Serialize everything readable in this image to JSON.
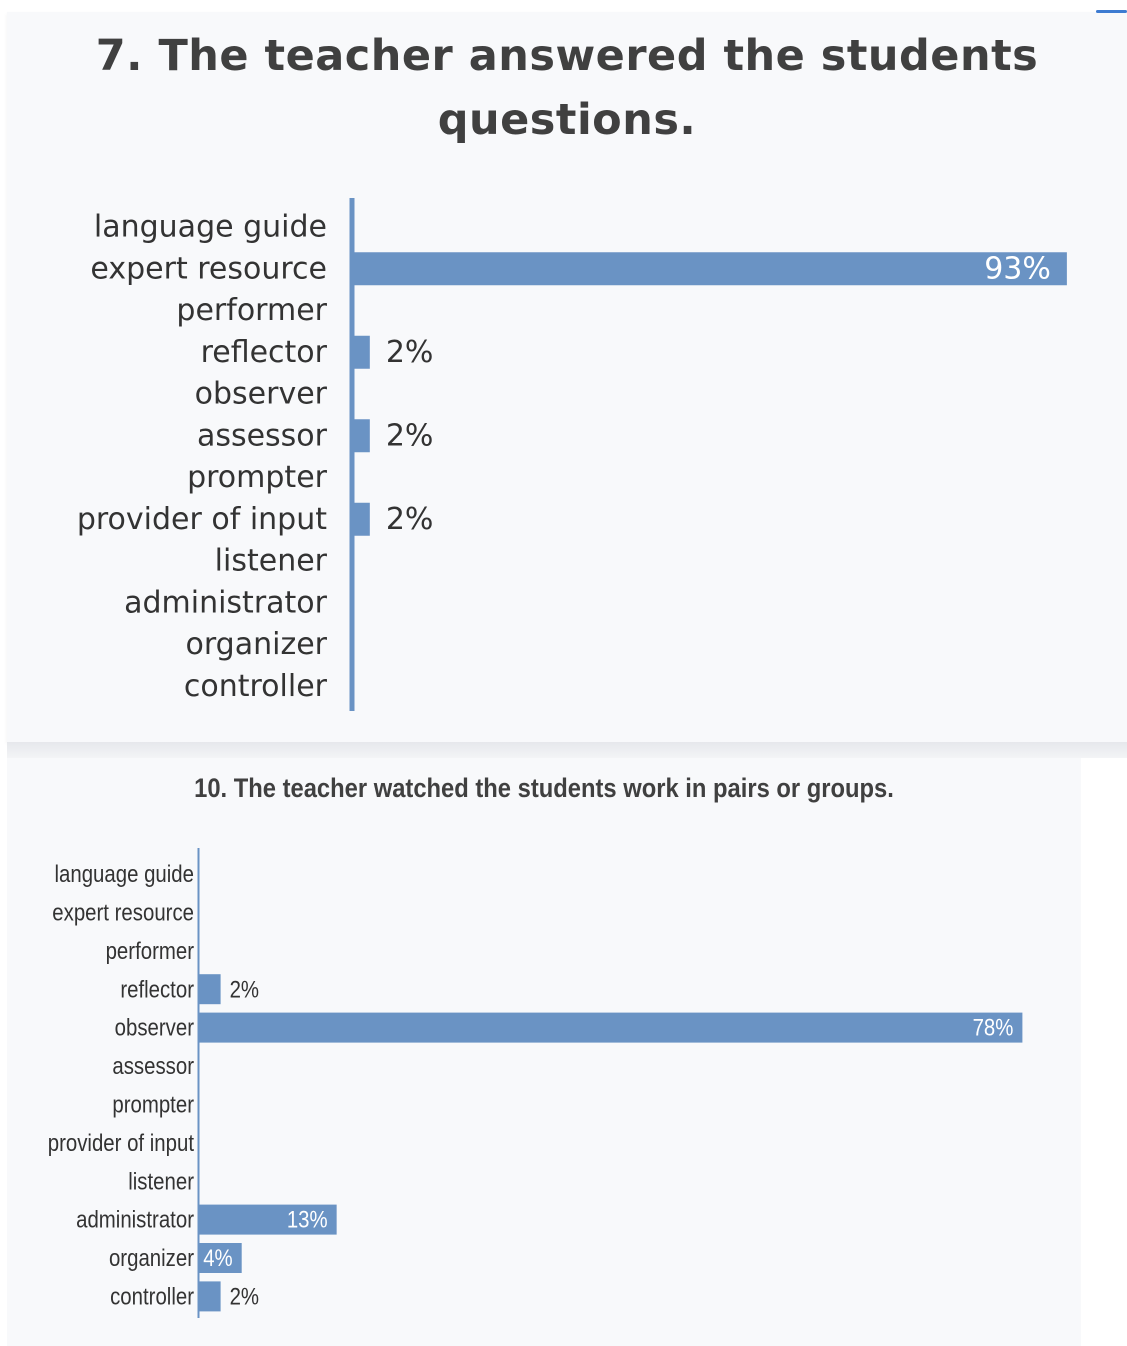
{
  "chart_data": [
    {
      "type": "bar",
      "orientation": "horizontal",
      "title": "7. The teacher answered the students questions.",
      "categories": [
        "language guide",
        "expert resource",
        "performer",
        "reflector",
        "observer",
        "assessor",
        "prompter",
        "provider of input",
        "listener",
        "administrator",
        "organizer",
        "controller"
      ],
      "values": [
        null,
        93,
        null,
        2,
        null,
        2,
        null,
        2,
        null,
        null,
        null,
        null
      ],
      "value_labels": [
        "",
        "93%",
        "",
        "2%",
        "",
        "2%",
        "",
        "2%",
        "",
        "",
        "",
        ""
      ],
      "unit": "%",
      "bar_color": "#6a93c4",
      "grid": false,
      "legend": "none"
    },
    {
      "type": "bar",
      "orientation": "horizontal",
      "title": "10. The teacher watched the students work in pairs or groups.",
      "categories": [
        "language guide",
        "expert resource",
        "performer",
        "reflector",
        "observer",
        "assessor",
        "prompter",
        "provider of input",
        "listener",
        "administrator",
        "organizer",
        "controller"
      ],
      "values": [
        null,
        null,
        null,
        2,
        78,
        null,
        null,
        null,
        null,
        13,
        4,
        2
      ],
      "value_labels": [
        "",
        "",
        "",
        "2%",
        "78%",
        "",
        "",
        "",
        "",
        "13%",
        "4%",
        "2%"
      ],
      "unit": "%",
      "bar_color": "#6a93c4",
      "grid": false,
      "legend": "none"
    }
  ]
}
